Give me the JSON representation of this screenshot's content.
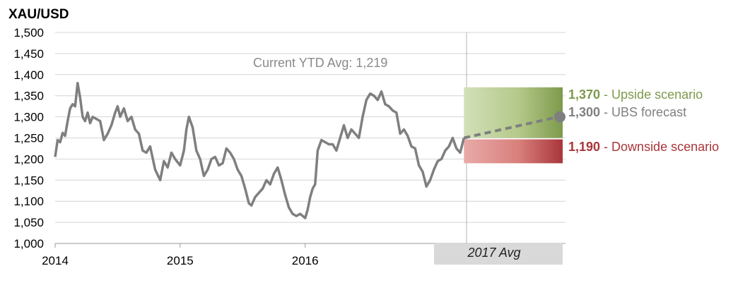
{
  "chart_data": {
    "type": "line",
    "title": "XAU/USD",
    "ylim": [
      1000,
      1500
    ],
    "yticks": [
      "1,000",
      "1,050",
      "1,100",
      "1,150",
      "1,200",
      "1,250",
      "1,300",
      "1,350",
      "1,400",
      "1,450",
      "1,500"
    ],
    "ytick_values": [
      1000,
      1050,
      1100,
      1150,
      1200,
      1250,
      1300,
      1350,
      1400,
      1450,
      1500
    ],
    "xticks": [
      {
        "label": "2014",
        "value": 2014.0
      },
      {
        "label": "2015",
        "value": 2015.0
      },
      {
        "label": "2016",
        "value": 2016.0
      }
    ],
    "xlim": [
      2014.0,
      2018.06
    ],
    "grid": "horizontal",
    "series": [
      {
        "color": "#7f7f7f",
        "x": [
          2014.0,
          2014.02,
          2014.04,
          2014.06,
          2014.08,
          2014.1,
          2014.12,
          2014.14,
          2014.16,
          2014.18,
          2014.2,
          2014.22,
          2014.24,
          2014.26,
          2014.28,
          2014.3,
          2014.33,
          2014.36,
          2014.39,
          2014.42,
          2014.45,
          2014.48,
          2014.5,
          2014.52,
          2014.55,
          2014.58,
          2014.61,
          2014.64,
          2014.67,
          2014.7,
          2014.73,
          2014.76,
          2014.8,
          2014.84,
          2014.87,
          2014.9,
          2014.93,
          2014.96,
          2015.0,
          2015.03,
          2015.05,
          2015.07,
          2015.1,
          2015.13,
          2015.16,
          2015.19,
          2015.22,
          2015.25,
          2015.28,
          2015.31,
          2015.34,
          2015.37,
          2015.4,
          2015.43,
          2015.46,
          2015.49,
          2015.52,
          2015.55,
          2015.57,
          2015.6,
          2015.63,
          2015.66,
          2015.69,
          2015.72,
          2015.75,
          2015.78,
          2015.81,
          2015.84,
          2015.87,
          2015.9,
          2015.93,
          2015.96,
          2016.0,
          2016.02,
          2016.04,
          2016.06,
          2016.08,
          2016.1,
          2016.13,
          2016.16,
          2016.19,
          2016.22,
          2016.25,
          2016.28,
          2016.31,
          2016.34,
          2016.37,
          2016.4,
          2016.43,
          2016.46,
          2016.49,
          2016.52,
          2016.55,
          2016.58,
          2016.61,
          2016.64,
          2016.67,
          2016.7,
          2016.73,
          2016.76,
          2016.79,
          2016.82,
          2016.85,
          2016.88,
          2016.91,
          2016.94,
          2016.97,
          2017.0,
          2017.03,
          2017.06,
          2017.09,
          2017.12,
          2017.15,
          2017.18,
          2017.21,
          2017.24,
          2017.27
        ],
        "y": [
          1205,
          1245,
          1240,
          1262,
          1255,
          1290,
          1320,
          1330,
          1325,
          1380,
          1345,
          1300,
          1290,
          1310,
          1285,
          1300,
          1295,
          1290,
          1245,
          1260,
          1280,
          1310,
          1325,
          1300,
          1320,
          1290,
          1300,
          1270,
          1260,
          1220,
          1215,
          1230,
          1175,
          1150,
          1195,
          1180,
          1215,
          1200,
          1185,
          1220,
          1270,
          1300,
          1275,
          1220,
          1200,
          1160,
          1175,
          1200,
          1205,
          1185,
          1190,
          1225,
          1215,
          1200,
          1175,
          1160,
          1130,
          1095,
          1090,
          1110,
          1120,
          1130,
          1150,
          1140,
          1165,
          1180,
          1150,
          1115,
          1085,
          1070,
          1065,
          1070,
          1060,
          1080,
          1110,
          1130,
          1140,
          1220,
          1245,
          1240,
          1235,
          1235,
          1220,
          1250,
          1280,
          1250,
          1270,
          1260,
          1250,
          1300,
          1340,
          1355,
          1350,
          1340,
          1360,
          1330,
          1325,
          1315,
          1310,
          1260,
          1270,
          1255,
          1230,
          1225,
          1185,
          1170,
          1135,
          1150,
          1175,
          1195,
          1200,
          1220,
          1230,
          1250,
          1225,
          1215,
          1250
        ]
      }
    ],
    "forecast": {
      "label": "2017 Avg",
      "start_x": 2017.27,
      "end_x": 2018.06,
      "start_y": 1250,
      "forecast_y": 1300,
      "upside": 1370,
      "downside": 1190,
      "upside_color": "#7e9a4c",
      "downside_color": "#a8363a"
    },
    "annotations": {
      "ytd": "Current YTD Avg: 1,219",
      "upside_value": "1,370",
      "upside_text": " - Upside scenario",
      "forecast_value": "1,300",
      "forecast_text": " - UBS forecast",
      "downside_value": "1,190",
      "downside_text": " - Downside scenario"
    },
    "colors": {
      "line": "#7f7f7f",
      "grid": "#d4d4d4",
      "upside_text": "#7e9a4c",
      "forecast_text": "#7f7f7f",
      "downside_text": "#a8363a",
      "avg_band": "#d9d9d9"
    }
  }
}
